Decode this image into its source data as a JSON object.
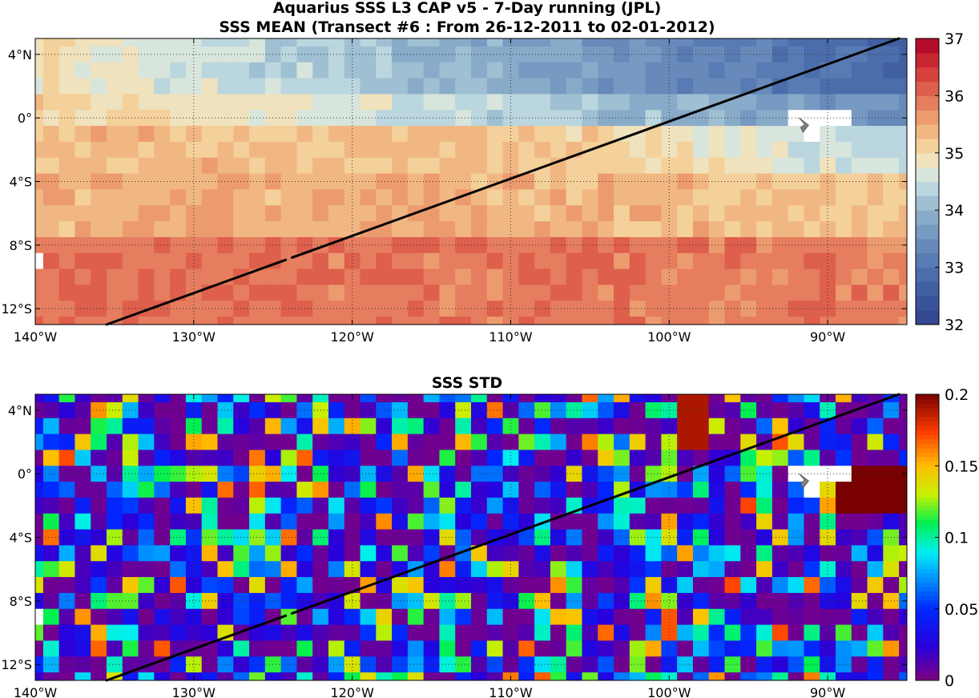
{
  "figure": {
    "title_line1": "Aquarius SSS L3 CAP v5 - 7-Day running (JPL)",
    "title_line2": "SSS MEAN (Transect #6 : From 26-12-2011 to 02-01-2012)"
  },
  "chart_data": [
    {
      "type": "heatmap",
      "title": "",
      "variable": "SSS MEAN",
      "x_range": [
        -140,
        -85
      ],
      "y_range": [
        -13,
        5
      ],
      "x_tick_labels": [
        "140°W",
        "130°W",
        "120°W",
        "110°W",
        "100°W",
        "90°W"
      ],
      "x_tick_values": [
        -140,
        -130,
        -120,
        -110,
        -100,
        -90
      ],
      "y_tick_labels": [
        "4°N",
        "0°",
        "4°S",
        "8°S",
        "12°S"
      ],
      "y_tick_values": [
        4,
        0,
        -4,
        -8,
        -12
      ],
      "grid": "dotted",
      "colormap": "diverging blue-white-red",
      "colorbar": {
        "min": 32,
        "max": 37,
        "tick_values": [
          32,
          33,
          34,
          35,
          36,
          37
        ],
        "tick_labels": [
          "32",
          "33",
          "34",
          "35",
          "36",
          "37"
        ]
      },
      "grid_resolution_deg": 1,
      "field_description_values": {
        "north_west_approx": 34.8,
        "north_east_approx": 32.6,
        "equator_east_approx": 34.0,
        "equator_central_approx": 35.2,
        "south_approx": 35.9,
        "south_west_approx": 36.0
      },
      "transect": {
        "start": [
          -135.5,
          -13
        ],
        "end": [
          -85.5,
          5
        ],
        "gap": [
          -124.2,
          -123.8
        ]
      }
    },
    {
      "type": "heatmap",
      "title": "SSS STD",
      "variable": "SSS STD",
      "x_range": [
        -140,
        -85
      ],
      "y_range": [
        -13,
        5
      ],
      "x_tick_labels": [
        "140°W",
        "130°W",
        "120°W",
        "110°W",
        "100°W",
        "90°W"
      ],
      "x_tick_values": [
        -140,
        -130,
        -120,
        -110,
        -100,
        -90
      ],
      "y_tick_labels": [
        "4°N",
        "0°",
        "4°S",
        "8°S",
        "12°S"
      ],
      "y_tick_values": [
        4,
        0,
        -4,
        -8,
        -12
      ],
      "grid": "dotted",
      "colormap": "jet",
      "colorbar": {
        "min": 0,
        "max": 0.2,
        "tick_values": [
          0,
          0.05,
          0.1,
          0.15,
          0.2
        ],
        "tick_labels": [
          "0",
          "0.05",
          "0.1",
          "0.15",
          "0.2"
        ]
      },
      "grid_resolution_deg": 1,
      "typical_value": 0.03,
      "high_region_east_value": 0.2,
      "transect": {
        "start": [
          -135.5,
          -13
        ],
        "end": [
          -85.5,
          5
        ],
        "gap": [
          -124.2,
          -123.8
        ]
      }
    }
  ],
  "land_mask": [
    [
      -92,
      0
    ],
    [
      -91,
      0
    ],
    [
      -90,
      0
    ],
    [
      -89,
      0
    ],
    [
      -91,
      -1
    ]
  ],
  "missing_cells": [
    [
      -140,
      -9
    ]
  ],
  "galapagos_marker": {
    "lon": -91.5,
    "lat": -0.5,
    "color": "#808080"
  }
}
